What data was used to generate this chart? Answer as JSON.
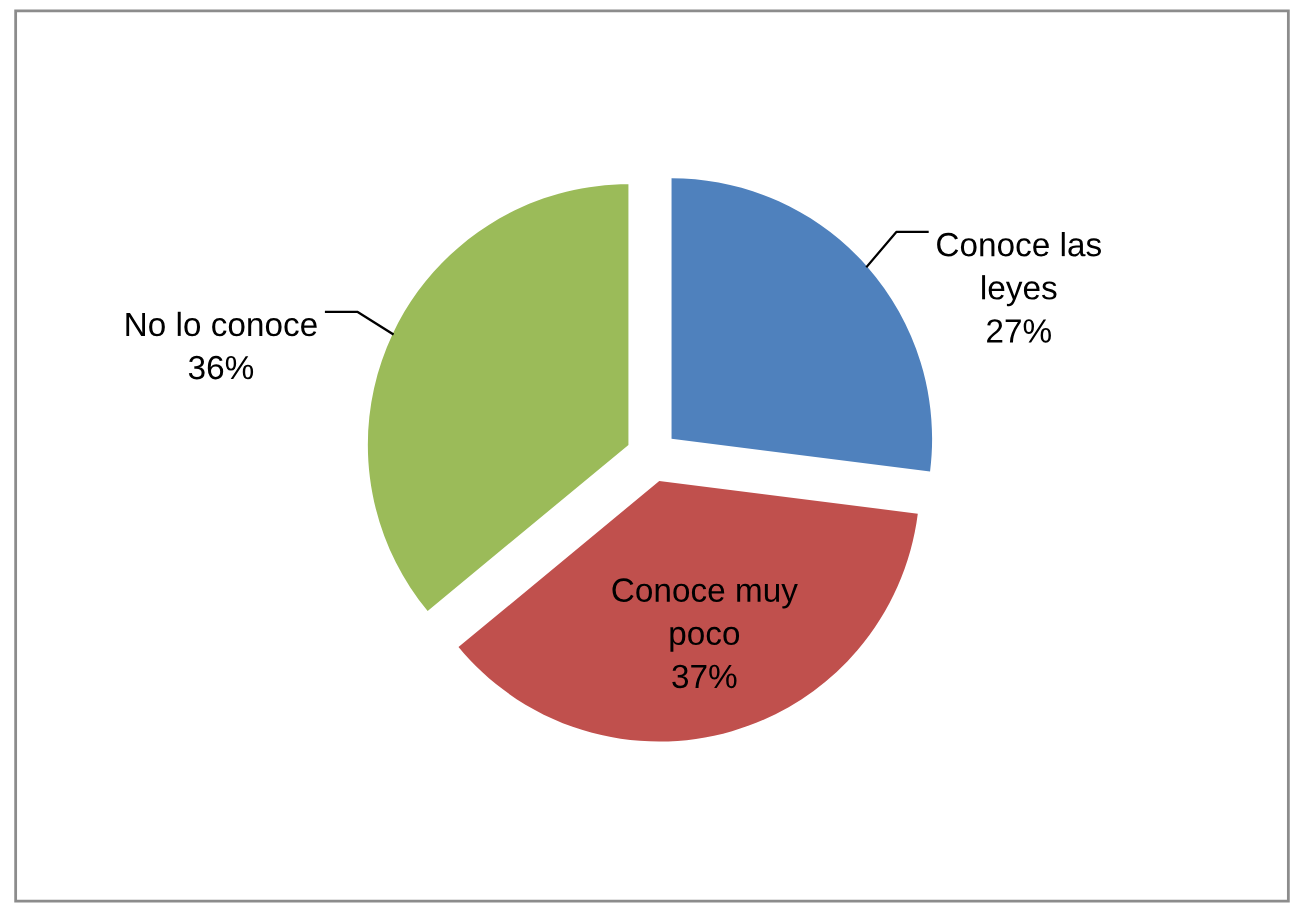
{
  "chart_data": {
    "type": "pie",
    "categories": [
      "Conoce las leyes",
      "Conoce muy poco",
      "No lo conoce"
    ],
    "values": [
      27,
      37,
      36
    ],
    "value_labels": [
      "27%",
      "37%",
      "36%"
    ],
    "colors": [
      "#4f81bd",
      "#c0504d",
      "#9bbb59"
    ],
    "legend": false
  }
}
